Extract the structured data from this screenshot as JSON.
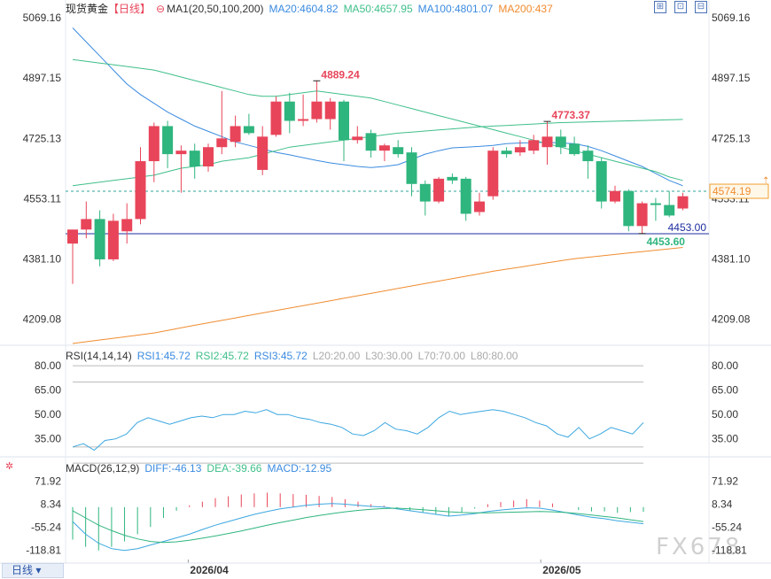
{
  "header": {
    "symbol": "现货黄金",
    "timeframe": "【日线】",
    "ma_params": "MA1(20,50,100,200)",
    "ma20": "MA20:4604.82",
    "ma50": "MA50:4657.95",
    "ma100": "MA100:4801.07",
    "ma200": "MA200:437"
  },
  "rsi_header": {
    "params": "RSI(14,14,14)",
    "rsi1": "RSI1:45.72",
    "rsi2": "RSI2:45.72",
    "rsi3": "RSI3:45.72",
    "l20": "L20:20.00",
    "l30": "L30:30.00",
    "l70": "L70:70.00",
    "l80": "L80:80.00"
  },
  "macd_header": {
    "params": "MACD(26,12,9)",
    "diff": "DIFF:-46.13",
    "dea": "DEA:-39.66",
    "macd": "MACD:-12.95"
  },
  "timeframe_button": "日线",
  "watermark": "FX678",
  "colors": {
    "up": "#e8455a",
    "down": "#2fb57e",
    "ma20": "#3b8be0",
    "ma50": "#3fbf8a",
    "ma100": "#3fbf8a",
    "ma200": "#f08c30",
    "hline": "#1f2fa0",
    "rsi": "#3ba7e0",
    "diff": "#3ba7e0",
    "dea": "#2fb57e",
    "axis_text": "#333333"
  },
  "chart_data": {
    "type": "candlestick",
    "price_axis": {
      "ticks": [
        "5069.16",
        "4897.15",
        "4725.13",
        "4553.11",
        "4381.10",
        "4209.08"
      ],
      "range": [
        4140,
        5069.16
      ]
    },
    "x_axis": {
      "tick_labels": [
        "2026/04",
        "2026/05"
      ],
      "tick_index": [
        8,
        34
      ]
    },
    "candles": [
      {
        "o": 4425,
        "h": 4460,
        "l": 4310,
        "c": 4465
      },
      {
        "o": 4465,
        "h": 4545,
        "l": 4440,
        "c": 4495
      },
      {
        "o": 4495,
        "h": 4520,
        "l": 4360,
        "c": 4380
      },
      {
        "o": 4380,
        "h": 4510,
        "l": 4375,
        "c": 4490
      },
      {
        "o": 4460,
        "h": 4540,
        "l": 4425,
        "c": 4495
      },
      {
        "o": 4495,
        "h": 4700,
        "l": 4480,
        "c": 4660
      },
      {
        "o": 4660,
        "h": 4770,
        "l": 4600,
        "c": 4760
      },
      {
        "o": 4760,
        "h": 4775,
        "l": 4640,
        "c": 4680
      },
      {
        "o": 4680,
        "h": 4705,
        "l": 4570,
        "c": 4690
      },
      {
        "o": 4690,
        "h": 4710,
        "l": 4610,
        "c": 4645
      },
      {
        "o": 4645,
        "h": 4710,
        "l": 4630,
        "c": 4700
      },
      {
        "o": 4700,
        "h": 4860,
        "l": 4680,
        "c": 4725
      },
      {
        "o": 4715,
        "h": 4790,
        "l": 4700,
        "c": 4760
      },
      {
        "o": 4760,
        "h": 4795,
        "l": 4735,
        "c": 4740
      },
      {
        "o": 4635,
        "h": 4760,
        "l": 4620,
        "c": 4730
      },
      {
        "o": 4735,
        "h": 4845,
        "l": 4730,
        "c": 4830
      },
      {
        "o": 4830,
        "h": 4855,
        "l": 4740,
        "c": 4775
      },
      {
        "o": 4775,
        "h": 4850,
        "l": 4760,
        "c": 4780
      },
      {
        "o": 4780,
        "h": 4889,
        "l": 4770,
        "c": 4830
      },
      {
        "o": 4780,
        "h": 4840,
        "l": 4750,
        "c": 4830
      },
      {
        "o": 4830,
        "h": 4835,
        "l": 4660,
        "c": 4720
      },
      {
        "o": 4720,
        "h": 4760,
        "l": 4710,
        "c": 4730
      },
      {
        "o": 4740,
        "h": 4750,
        "l": 4670,
        "c": 4690
      },
      {
        "o": 4690,
        "h": 4710,
        "l": 4660,
        "c": 4705
      },
      {
        "o": 4700,
        "h": 4720,
        "l": 4670,
        "c": 4680
      },
      {
        "o": 4685,
        "h": 4700,
        "l": 4560,
        "c": 4595
      },
      {
        "o": 4595,
        "h": 4605,
        "l": 4505,
        "c": 4545
      },
      {
        "o": 4545,
        "h": 4615,
        "l": 4540,
        "c": 4610
      },
      {
        "o": 4615,
        "h": 4625,
        "l": 4595,
        "c": 4605
      },
      {
        "o": 4610,
        "h": 4615,
        "l": 4490,
        "c": 4510
      },
      {
        "o": 4515,
        "h": 4570,
        "l": 4505,
        "c": 4545
      },
      {
        "o": 4560,
        "h": 4700,
        "l": 4550,
        "c": 4690
      },
      {
        "o": 4690,
        "h": 4700,
        "l": 4670,
        "c": 4680
      },
      {
        "o": 4685,
        "h": 4720,
        "l": 4675,
        "c": 4700
      },
      {
        "o": 4690,
        "h": 4735,
        "l": 4680,
        "c": 4720
      },
      {
        "o": 4700,
        "h": 4773.37,
        "l": 4650,
        "c": 4730
      },
      {
        "o": 4730,
        "h": 4750,
        "l": 4680,
        "c": 4700
      },
      {
        "o": 4710,
        "h": 4730,
        "l": 4675,
        "c": 4680
      },
      {
        "o": 4690,
        "h": 4705,
        "l": 4610,
        "c": 4660
      },
      {
        "o": 4660,
        "h": 4670,
        "l": 4525,
        "c": 4545
      },
      {
        "o": 4545,
        "h": 4590,
        "l": 4540,
        "c": 4575
      },
      {
        "o": 4575,
        "h": 4580,
        "l": 4460,
        "c": 4475
      },
      {
        "o": 4475,
        "h": 4545,
        "l": 4453.6,
        "c": 4540
      },
      {
        "o": 4540,
        "h": 4555,
        "l": 4490,
        "c": 4535
      },
      {
        "o": 4535,
        "h": 4575,
        "l": 4500,
        "c": 4505
      },
      {
        "o": 4525,
        "h": 4570,
        "l": 4520,
        "c": 4560
      }
    ],
    "ma_lines": [
      {
        "name": "MA20",
        "values": [
          5040,
          5000,
          4960,
          4920,
          4880,
          4850,
          4825,
          4800,
          4780,
          4760,
          4745,
          4730,
          4715,
          4705,
          4695,
          4685,
          4678,
          4670,
          4662,
          4655,
          4650,
          4645,
          4642,
          4645,
          4650,
          4665,
          4680,
          4690,
          4698,
          4700,
          4702,
          4705,
          4710,
          4712,
          4713,
          4714,
          4712,
          4710,
          4702,
          4690,
          4675,
          4660,
          4645,
          4625,
          4605,
          4590
        ]
      },
      {
        "name": "MA50",
        "values": [
          4950,
          4945,
          4940,
          4935,
          4930,
          4925,
          4920,
          4910,
          4900,
          4890,
          4880,
          4870,
          4860,
          4850,
          4845,
          4845,
          4850,
          4855,
          4860,
          4855,
          4850,
          4845,
          4840,
          4830,
          4820,
          4810,
          4800,
          4790,
          4780,
          4770,
          4760,
          4750,
          4740,
          4730,
          4720,
          4710,
          4700,
          4690,
          4680,
          4670,
          4660,
          4650,
          4640,
          4630,
          4615,
          4605
        ]
      },
      {
        "name": "MA100",
        "values": [
          4590,
          4595,
          4600,
          4605,
          4610,
          4615,
          4620,
          4630,
          4640,
          4645,
          4650,
          4660,
          4665,
          4670,
          4680,
          4690,
          4700,
          4705,
          4710,
          4715,
          4720,
          4725,
          4730,
          4735,
          4740,
          4743,
          4746,
          4749,
          4752,
          4755,
          4758,
          4760,
          4762,
          4764,
          4766,
          4768,
          4770,
          4771,
          4772,
          4773,
          4774,
          4775,
          4776,
          4777,
          4778,
          4779
        ]
      },
      {
        "name": "MA200",
        "values": [
          4140,
          4145,
          4150,
          4155,
          4160,
          4165,
          4170,
          4177,
          4185,
          4192,
          4199,
          4206,
          4213,
          4220,
          4227,
          4234,
          4241,
          4248,
          4255,
          4262,
          4269,
          4276,
          4283,
          4290,
          4297,
          4304,
          4311,
          4318,
          4325,
          4332,
          4339,
          4346,
          4352,
          4358,
          4364,
          4370,
          4376,
          4382,
          4386,
          4390,
          4394,
          4398,
          4402,
          4406,
          4410,
          4414
        ]
      }
    ],
    "current_price": "4574.19",
    "current_value": 4574.19,
    "support_line": {
      "label": "4453.00",
      "value": 4453.0
    },
    "annotations": [
      {
        "text": "4889.24",
        "value": 4889.24,
        "index": 18
      },
      {
        "text": "4773.37",
        "value": 4773.37,
        "index": 35
      },
      {
        "text": "4453.60",
        "value": 4453.6,
        "index": 42
      }
    ],
    "rsi": {
      "ticks": [
        "80.00",
        "65.00",
        "50.00",
        "35.00"
      ],
      "range": [
        25,
        85
      ],
      "levels": [
        80,
        70,
        30,
        20
      ],
      "values": [
        30,
        32,
        28,
        34,
        35,
        38,
        45,
        48,
        46,
        44,
        46,
        48,
        49,
        48,
        50,
        50,
        52,
        51,
        53,
        50,
        50,
        48,
        47,
        45,
        44,
        42,
        38,
        37,
        40,
        45,
        41,
        40,
        38,
        42,
        48,
        52,
        50,
        51,
        52,
        53,
        52,
        50,
        48,
        45,
        43,
        38,
        36,
        42,
        35,
        38,
        42,
        40,
        38,
        45
      ]
    },
    "macd": {
      "ticks": [
        "71.92",
        "8.34",
        "-55.24",
        "-118.81"
      ],
      "range": [
        -150,
        100
      ],
      "diff": [
        -40,
        -75,
        -100,
        -115,
        -120,
        -115,
        -105,
        -95,
        -85,
        -75,
        -62,
        -50,
        -40,
        -30,
        -20,
        -12,
        -5,
        0,
        5,
        8,
        10,
        8,
        5,
        2,
        0,
        -5,
        -10,
        -15,
        -20,
        -25,
        -22,
        -18,
        -12,
        -8,
        -5,
        -2,
        -3,
        -8,
        -15,
        -22,
        -28,
        -32,
        -38,
        -42,
        -46
      ],
      "dea": [
        -10,
        -30,
        -50,
        -65,
        -78,
        -88,
        -95,
        -98,
        -96,
        -92,
        -86,
        -80,
        -73,
        -66,
        -58,
        -50,
        -43,
        -36,
        -29,
        -23,
        -18,
        -13,
        -9,
        -6,
        -4,
        -3,
        -5,
        -7,
        -10,
        -13,
        -15,
        -16,
        -16,
        -15,
        -14,
        -13,
        -12,
        -13,
        -15,
        -18,
        -22,
        -26,
        -30,
        -35,
        -40
      ],
      "hist": [
        -90,
        -110,
        -120,
        -110,
        -95,
        -75,
        -55,
        -30,
        -10,
        5,
        15,
        25,
        30,
        35,
        38,
        40,
        38,
        36,
        34,
        31,
        28,
        22,
        15,
        8,
        4,
        -3,
        -10,
        -16,
        -20,
        -24,
        -14,
        -4,
        8,
        14,
        18,
        22,
        18,
        10,
        0,
        -8,
        -12,
        -12,
        -16,
        -14,
        -13
      ]
    }
  }
}
